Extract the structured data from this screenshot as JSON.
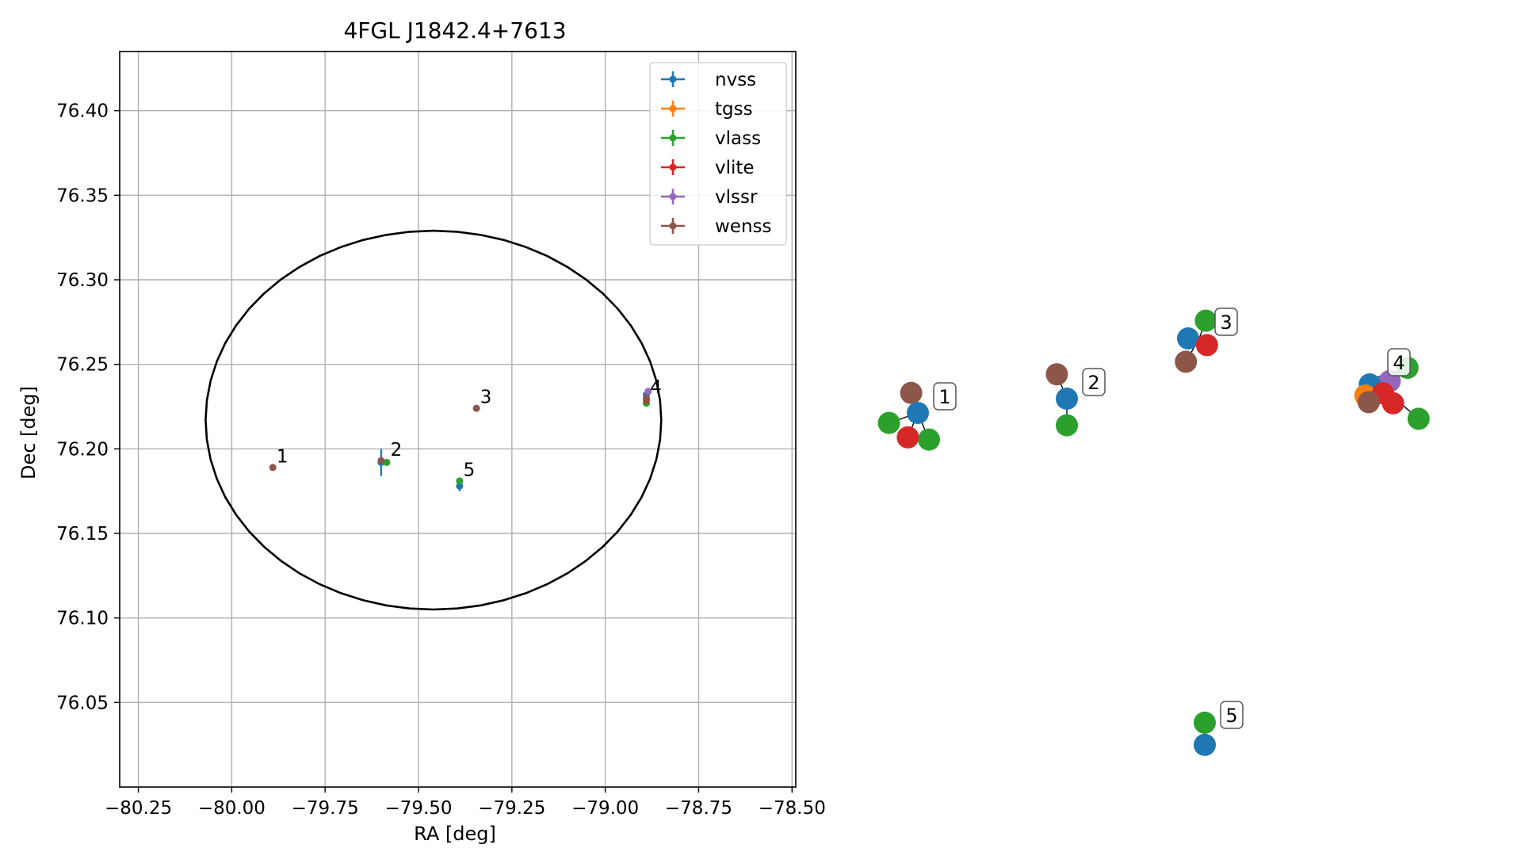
{
  "chart_data": [
    {
      "type": "scatter",
      "title": "4FGL J1842.4+7613",
      "xlabel": "RA [deg]",
      "ylabel": "Dec [deg]",
      "xlim": [
        -80.3,
        -78.49
      ],
      "ylim": [
        76.0,
        76.435
      ],
      "xticks": [
        -80.25,
        -80.0,
        -79.75,
        -79.5,
        -79.25,
        -79.0,
        -78.75,
        -78.5
      ],
      "xtick_labels": [
        "−80.25",
        "−80.00",
        "−79.75",
        "−79.50",
        "−79.25",
        "−79.00",
        "−78.75",
        "−78.50"
      ],
      "yticks": [
        76.05,
        76.1,
        76.15,
        76.2,
        76.25,
        76.3,
        76.35,
        76.4
      ],
      "ytick_labels": [
        "76.05",
        "76.10",
        "76.15",
        "76.20",
        "76.25",
        "76.30",
        "76.35",
        "76.40"
      ],
      "grid": true,
      "legend_position": "top-right",
      "ellipse": {
        "center": [
          -79.46,
          76.217
        ],
        "ra_semi_axis": 0.61,
        "dec_semi_axis": 0.112,
        "color": "#000000"
      },
      "series": [
        {
          "name": "nvss",
          "color": "#1f77b4",
          "points": [
            {
              "x": -79.6,
              "y": 76.192,
              "xerr": 0.005,
              "yerr": 0.008
            },
            {
              "x": -79.39,
              "y": 76.178,
              "xerr": 0.005,
              "yerr": 0.003
            },
            {
              "x": -78.89,
              "y": 76.232,
              "xerr": 0.003,
              "yerr": 0.002
            }
          ]
        },
        {
          "name": "tgss",
          "color": "#ff7f0e",
          "points": []
        },
        {
          "name": "vlass",
          "color": "#2ca02c",
          "points": [
            {
              "x": -79.585,
              "y": 76.192,
              "xerr": 0.002,
              "yerr": 0.001
            },
            {
              "x": -79.39,
              "y": 76.181,
              "xerr": 0.002,
              "yerr": 0.001
            },
            {
              "x": -78.89,
              "y": 76.227,
              "xerr": 0.002,
              "yerr": 0.001
            }
          ]
        },
        {
          "name": "vlite",
          "color": "#d62728",
          "points": [
            {
              "x": -78.89,
              "y": 76.229,
              "xerr": 0.002,
              "yerr": 0.001
            }
          ]
        },
        {
          "name": "vlssr",
          "color": "#9467bd",
          "points": [
            {
              "x": -78.885,
              "y": 76.234,
              "xerr": 0.002,
              "yerr": 0.001
            }
          ]
        },
        {
          "name": "wenss",
          "color": "#8c564b",
          "points": [
            {
              "x": -79.89,
              "y": 76.189,
              "xerr": 0.002,
              "yerr": 0.001
            },
            {
              "x": -79.6,
              "y": 76.193,
              "xerr": 0.002,
              "yerr": 0.001
            },
            {
              "x": -79.345,
              "y": 76.224,
              "xerr": 0.002,
              "yerr": 0.001
            },
            {
              "x": -78.89,
              "y": 76.23,
              "xerr": 0.002,
              "yerr": 0.001
            }
          ]
        }
      ],
      "annotations": [
        {
          "text": "1",
          "x": -79.88,
          "y": 76.192
        },
        {
          "text": "2",
          "x": -79.575,
          "y": 76.196
        },
        {
          "text": "3",
          "x": -79.335,
          "y": 76.227
        },
        {
          "text": "4",
          "x": -78.88,
          "y": 76.233
        },
        {
          "text": "5",
          "x": -79.38,
          "y": 76.184
        }
      ]
    },
    {
      "type": "scatter",
      "description_free": true,
      "groups": [
        {
          "label": "1",
          "points": [
            {
              "series": "wenss",
              "x": -0.6,
              "y": 1.8
            },
            {
              "series": "nvss",
              "x": 0.0,
              "y": 0.0
            },
            {
              "series": "vlass",
              "x": -2.6,
              "y": -0.9
            },
            {
              "series": "vlass",
              "x": 1.0,
              "y": -2.4
            },
            {
              "series": "vlite",
              "x": -0.9,
              "y": -2.2
            }
          ]
        },
        {
          "label": "2",
          "points": [
            {
              "series": "wenss",
              "x": -0.9,
              "y": 2.2
            },
            {
              "series": "nvss",
              "x": 0.0,
              "y": 0.0
            },
            {
              "series": "vlass",
              "x": 0.0,
              "y": -2.4
            }
          ]
        },
        {
          "label": "3",
          "points": [
            {
              "series": "vlass",
              "x": 0.6,
              "y": 1.6
            },
            {
              "series": "nvss",
              "x": -1.0,
              "y": 0.0
            },
            {
              "series": "vlite",
              "x": 0.7,
              "y": -0.6
            },
            {
              "series": "wenss",
              "x": -1.2,
              "y": -2.1
            }
          ]
        },
        {
          "label": "4",
          "points": [
            {
              "series": "vlass",
              "x": 3.2,
              "y": 1.0
            },
            {
              "series": "vlssr",
              "x": 1.6,
              "y": -0.2
            },
            {
              "series": "nvss",
              "x": -0.2,
              "y": -0.5
            },
            {
              "series": "tgss",
              "x": -0.6,
              "y": -1.5
            },
            {
              "series": "vlite",
              "x": 1.0,
              "y": -1.3
            },
            {
              "series": "wenss",
              "x": -0.3,
              "y": -2.1
            },
            {
              "series": "vlite",
              "x": 1.9,
              "y": -2.2
            },
            {
              "series": "vlass",
              "x": 4.2,
              "y": -3.6
            }
          ]
        },
        {
          "label": "5",
          "points": [
            {
              "series": "vlass",
              "x": 0.0,
              "y": 0.8
            },
            {
              "series": "nvss",
              "x": 0.0,
              "y": -1.2
            }
          ]
        }
      ]
    }
  ]
}
